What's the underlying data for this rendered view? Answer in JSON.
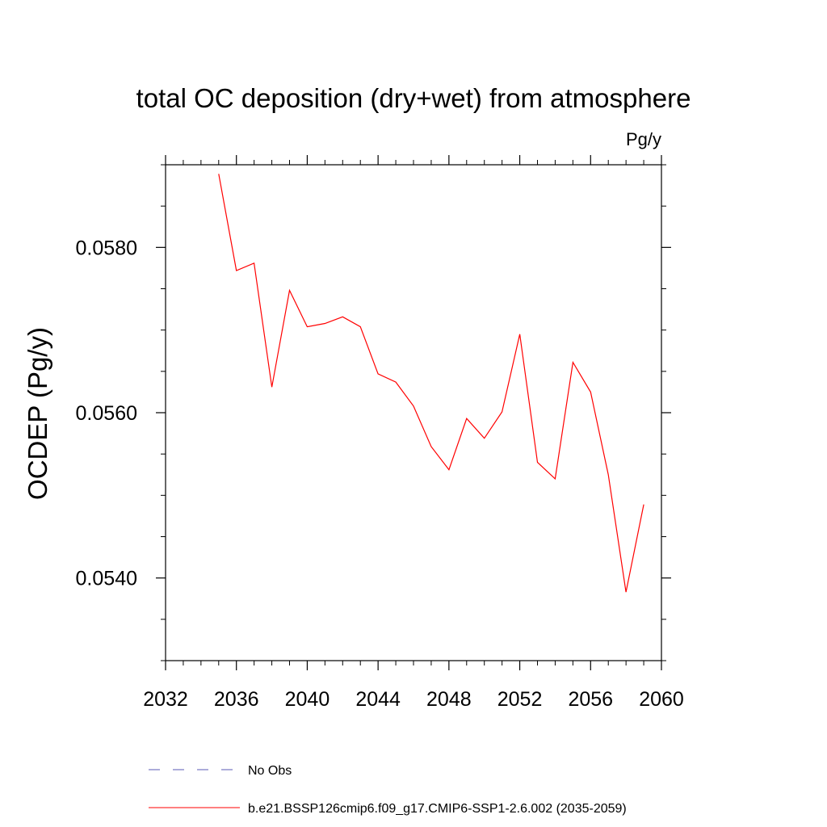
{
  "chart_data": {
    "type": "line",
    "title": "total OC deposition (dry+wet) from atmosphere",
    "units": "Pg/y",
    "ylabel": "OCDEP  (Pg/y)",
    "xlabel": "",
    "xlim": [
      2032,
      2060
    ],
    "ylim": [
      0.053,
      0.059
    ],
    "x_major_ticks": [
      2032,
      2036,
      2040,
      2044,
      2048,
      2052,
      2056,
      2060
    ],
    "x_minor_ticks": [
      2033,
      2034,
      2035,
      2037,
      2038,
      2039,
      2041,
      2042,
      2043,
      2045,
      2046,
      2047,
      2049,
      2050,
      2051,
      2053,
      2054,
      2055,
      2057,
      2058,
      2059
    ],
    "y_major_ticks": [
      0.054,
      0.056,
      0.058
    ],
    "y_minor_ticks": [
      0.053,
      0.0535,
      0.0545,
      0.055,
      0.0555,
      0.0565,
      0.057,
      0.0575,
      0.0585,
      0.059
    ],
    "x_tick_labels": [
      "2032",
      "2036",
      "2040",
      "2044",
      "2048",
      "2052",
      "2056",
      "2060"
    ],
    "y_tick_labels": [
      "0.0540",
      "0.0560",
      "0.0580"
    ],
    "grid": false,
    "series": [
      {
        "name": "b.e21.BSSP126cmip6.f09_g17.CMIP6-SSP1-2.6.002 (2035-2059)",
        "color": "#ff0000",
        "dash": "solid",
        "x": [
          2035,
          2036,
          2037,
          2038,
          2039,
          2040,
          2041,
          2042,
          2043,
          2044,
          2045,
          2046,
          2047,
          2048,
          2049,
          2050,
          2051,
          2052,
          2053,
          2054,
          2055,
          2056,
          2057,
          2058,
          2059
        ],
        "values": [
          0.05889,
          0.05772,
          0.05781,
          0.05631,
          0.05748,
          0.05704,
          0.05708,
          0.05716,
          0.05704,
          0.05647,
          0.05637,
          0.05608,
          0.05559,
          0.05531,
          0.05593,
          0.05569,
          0.05601,
          0.05695,
          0.0554,
          0.0552,
          0.05661,
          0.05625,
          0.05525,
          0.05383,
          0.05489
        ]
      }
    ],
    "legend": [
      {
        "label": "No Obs",
        "color": "#5a5ab4",
        "dash": "dashed"
      },
      {
        "label": "b.e21.BSSP126cmip6.f09_g17.CMIP6-SSP1-2.6.002 (2035-2059)",
        "color": "#ff0000",
        "dash": "solid"
      }
    ],
    "legend_position": "bottom"
  }
}
